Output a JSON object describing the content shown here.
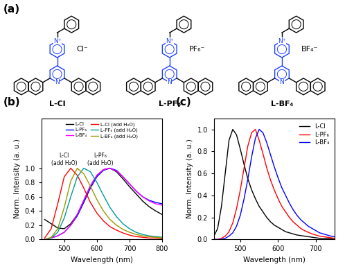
{
  "panel_labels": [
    "(a)",
    "(b)",
    "(c)"
  ],
  "structures": {
    "type": "structures",
    "atoms": {
      "pyridinium": "N⁺",
      "pyridine": "N"
    },
    "compounds": [
      {
        "name": "L-Cl",
        "anion": "Cl⁻"
      },
      {
        "name": "L-PF₆",
        "anion": "PF₆⁻"
      },
      {
        "name": "L-BF₄",
        "anion": "BF₄⁻"
      }
    ]
  },
  "chart_data": [
    {
      "type": "line",
      "xlabel": "Wavelength (nm)",
      "ylabel": "Norm. Intensity (a. u.)",
      "x": [
        440,
        460,
        480,
        500,
        520,
        540,
        560,
        580,
        600,
        620,
        640,
        660,
        680,
        700,
        720,
        740,
        760,
        780,
        800
      ],
      "series": [
        {
          "name": "L-Cl",
          "color": "#000000",
          "values": [
            0.28,
            0.22,
            0.16,
            0.15,
            0.22,
            0.35,
            0.55,
            0.75,
            0.9,
            0.98,
            1.0,
            0.95,
            0.85,
            0.74,
            0.64,
            0.54,
            0.46,
            0.4,
            0.35
          ]
        },
        {
          "name": "L-PF₆",
          "color": "#0000ff",
          "values": [
            0.0,
            0.02,
            0.05,
            0.1,
            0.2,
            0.33,
            0.52,
            0.72,
            0.88,
            0.97,
            1.0,
            0.97,
            0.88,
            0.78,
            0.68,
            0.6,
            0.55,
            0.52,
            0.5
          ]
        },
        {
          "name": "L-BF₄",
          "color": "#ff00ff",
          "values": [
            0.0,
            0.02,
            0.05,
            0.1,
            0.2,
            0.35,
            0.55,
            0.75,
            0.9,
            0.98,
            1.0,
            0.96,
            0.88,
            0.78,
            0.68,
            0.6,
            0.54,
            0.5,
            0.48
          ]
        },
        {
          "name": "L-Cl (add H₂O)",
          "color": "#ff0000",
          "values": [
            0.02,
            0.15,
            0.5,
            0.88,
            1.0,
            0.9,
            0.72,
            0.52,
            0.37,
            0.26,
            0.18,
            0.13,
            0.09,
            0.06,
            0.04,
            0.03,
            0.02,
            0.02,
            0.01
          ]
        },
        {
          "name": "L-PF₆ (add H₂O)",
          "color": "#009999",
          "values": [
            0.0,
            0.02,
            0.1,
            0.3,
            0.6,
            0.88,
            1.0,
            0.95,
            0.8,
            0.62,
            0.45,
            0.32,
            0.22,
            0.15,
            0.1,
            0.07,
            0.05,
            0.04,
            0.03
          ]
        },
        {
          "name": "L-BF₄ (add H₂O)",
          "color": "#999900",
          "values": [
            0.0,
            0.03,
            0.15,
            0.45,
            0.82,
            1.0,
            0.92,
            0.75,
            0.56,
            0.4,
            0.28,
            0.2,
            0.14,
            0.1,
            0.07,
            0.05,
            0.04,
            0.03,
            0.02
          ]
        }
      ],
      "annotations": [
        {
          "text": "L-Cl\n(add H₂O)",
          "x": 500,
          "y": 1.03
        },
        {
          "text": "L-PF₆\n(add H₂O)",
          "x": 610,
          "y": 1.03
        }
      ],
      "xlim": [
        430,
        800
      ],
      "ylim": [
        0.0,
        1.7
      ],
      "xticks": [
        500,
        600,
        700,
        800
      ],
      "yticks": [
        0.0,
        0.2,
        0.4,
        0.6,
        0.8,
        1.0
      ],
      "legend": "upper center"
    },
    {
      "type": "line",
      "xlabel": "Wavelength (nm)",
      "ylabel": "Norm. Intensity (a. u.)",
      "x": [
        430,
        440,
        450,
        460,
        470,
        480,
        490,
        500,
        510,
        520,
        530,
        540,
        550,
        560,
        570,
        580,
        590,
        600,
        610,
        620,
        630,
        640,
        650,
        660,
        670,
        680,
        690,
        700,
        710,
        720,
        730,
        740,
        750
      ],
      "series": [
        {
          "name": "L-Cl",
          "color": "#000000",
          "values": [
            0.03,
            0.1,
            0.3,
            0.6,
            0.9,
            1.0,
            0.95,
            0.82,
            0.68,
            0.55,
            0.45,
            0.37,
            0.3,
            0.25,
            0.2,
            0.16,
            0.13,
            0.11,
            0.09,
            0.07,
            0.06,
            0.05,
            0.04,
            0.035,
            0.03,
            0.025,
            0.02,
            0.015,
            0.01,
            0.01,
            0.01,
            0.005,
            0.0
          ]
        },
        {
          "name": "L-PF₆",
          "color": "#ff0000",
          "values": [
            0.0,
            0.0,
            0.01,
            0.03,
            0.07,
            0.15,
            0.28,
            0.45,
            0.65,
            0.85,
            0.97,
            1.0,
            0.9,
            0.78,
            0.65,
            0.54,
            0.45,
            0.37,
            0.3,
            0.25,
            0.2,
            0.16,
            0.13,
            0.1,
            0.08,
            0.065,
            0.05,
            0.04,
            0.03,
            0.025,
            0.02,
            0.015,
            0.01
          ]
        },
        {
          "name": "L-BF₄",
          "color": "#0000ff",
          "values": [
            0.0,
            0.0,
            0.0,
            0.01,
            0.03,
            0.06,
            0.12,
            0.22,
            0.37,
            0.55,
            0.75,
            0.92,
            1.0,
            0.97,
            0.88,
            0.77,
            0.66,
            0.56,
            0.47,
            0.4,
            0.33,
            0.27,
            0.22,
            0.18,
            0.15,
            0.12,
            0.1,
            0.08,
            0.06,
            0.05,
            0.04,
            0.03,
            0.025
          ]
        }
      ],
      "xlim": [
        430,
        750
      ],
      "ylim": [
        0.0,
        1.1
      ],
      "xticks": [
        500,
        600,
        700
      ],
      "yticks": [
        0.0,
        0.2,
        0.4,
        0.6,
        0.8,
        1.0
      ],
      "legend": "upper right"
    }
  ]
}
